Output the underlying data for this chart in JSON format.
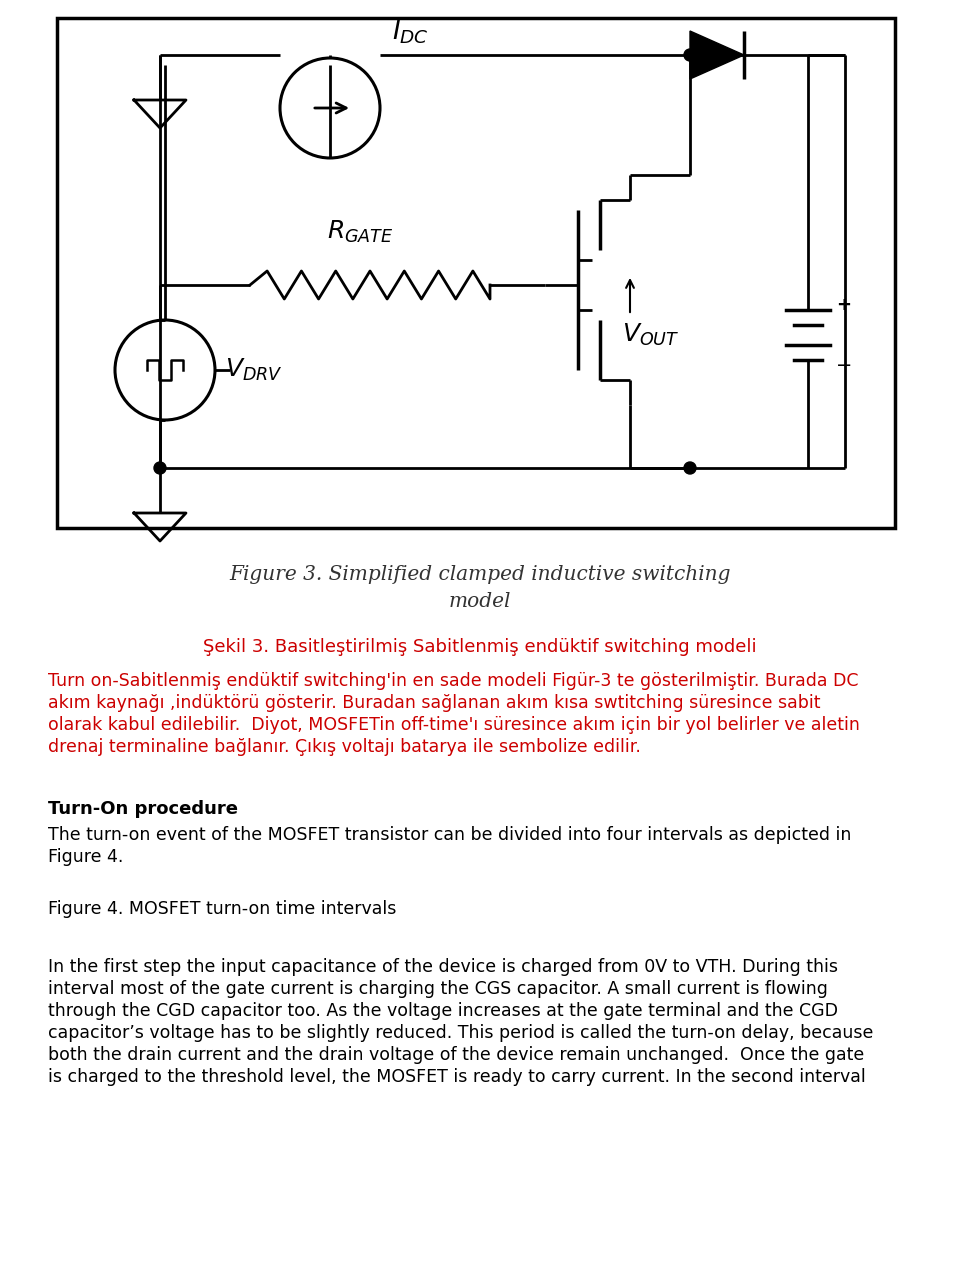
{
  "fig_caption_line1": "Figure 3. Simplified clamped inductive switching",
  "fig_caption_line2": "model",
  "turkish_caption": "Şekil 3. Basitleştirilmiş Sabitlenmiş endüktif switching modeli",
  "turkish_body_line1": "Turn on-Sabitlenmiş endüktif switching'in en sade modeli Figür-3 te gösterilmiştir. Burada DC",
  "turkish_body_line2": "akım kaynağı ,indüktörü gösterir. Buradan sağlanan akım kısa swtitching süresince sabit",
  "turkish_body_line3": "olarak kabul edilebilir.  Diyot, MOSFETin off-time'ı süresince akım için bir yol belirler ve aletin",
  "turkish_body_line4": "drenaj terminaline bağlanır. Çıkış voltajı batarya ile sembolize edilir.",
  "section_title": "Turn-On procedure",
  "section_body_line1": "The turn-on event of the MOSFET transistor can be divided into four intervals as depicted in",
  "section_body_line2": "Figure 4.",
  "fig4_label": "Figure 4. MOSFET turn-on time intervals",
  "body2_line1": "In the first step the input capacitance of the device is charged from 0V to VTH. During this",
  "body2_line2": "interval most of the gate current is charging the CGS capacitor. A small current is flowing",
  "body2_line3": "through the CGD capacitor too. As the voltage increases at the gate terminal and the CGD",
  "body2_line4": "capacitor’s voltage has to be slightly reduced. This period is called the turn-on delay, because",
  "body2_line5": "both the drain current and the drain voltage of the device remain unchanged.  Once the gate",
  "body2_line6": "is charged to the threshold level, the MOSFET is ready to carry current. In the second interval",
  "bg_color": "#ffffff",
  "text_color_black": "#000000",
  "text_color_red": "#cc0000"
}
